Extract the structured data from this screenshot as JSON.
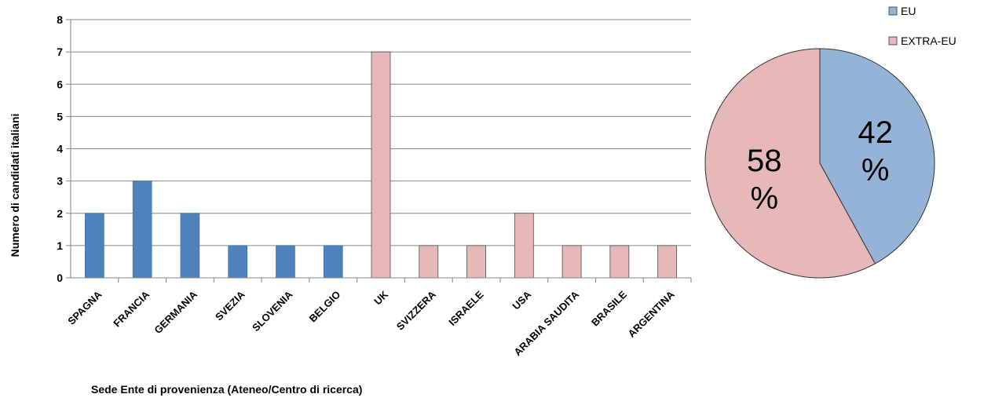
{
  "chart_data": [
    {
      "type": "bar",
      "categories": [
        "SPAGNA",
        "FRANCIA",
        "GERMANIA",
        "SVEZIA",
        "SLOVENIA",
        "BELGIO",
        "UK",
        "SVIZZERA",
        "ISRAELE",
        "USA",
        "ARABIA SAUDITA",
        "BRASILE",
        "ARGENTINA"
      ],
      "values": [
        2,
        3,
        2,
        1,
        1,
        1,
        7,
        1,
        1,
        2,
        1,
        1,
        1
      ],
      "groups": [
        "EU",
        "EU",
        "EU",
        "EU",
        "EU",
        "EU",
        "EXTRA-EU",
        "EXTRA-EU",
        "EXTRA-EU",
        "EXTRA-EU",
        "EXTRA-EU",
        "EXTRA-EU",
        "EXTRA-EU"
      ],
      "xlabel": "Sede Ente di provenienza (Ateneo/Centro di ricerca)",
      "ylabel": "Numero di candidati italiani",
      "ylim": [
        0,
        8
      ],
      "yticks": [
        0,
        1,
        2,
        3,
        4,
        5,
        6,
        7,
        8
      ],
      "grid": true,
      "colors": {
        "EU": "#4f81bd",
        "EXTRA-EU": "#e6b9b8"
      }
    },
    {
      "type": "pie",
      "slices": [
        {
          "name": "EU",
          "value": 42,
          "label": "42",
          "pct": "%",
          "color": "#95b3d7"
        },
        {
          "name": "EXTRA-EU",
          "value": 58,
          "label": "58",
          "pct": "%",
          "color": "#e6b9b8"
        }
      ],
      "legend": {
        "position": "top-right",
        "entries": [
          "EU",
          "EXTRA-EU"
        ]
      }
    }
  ]
}
